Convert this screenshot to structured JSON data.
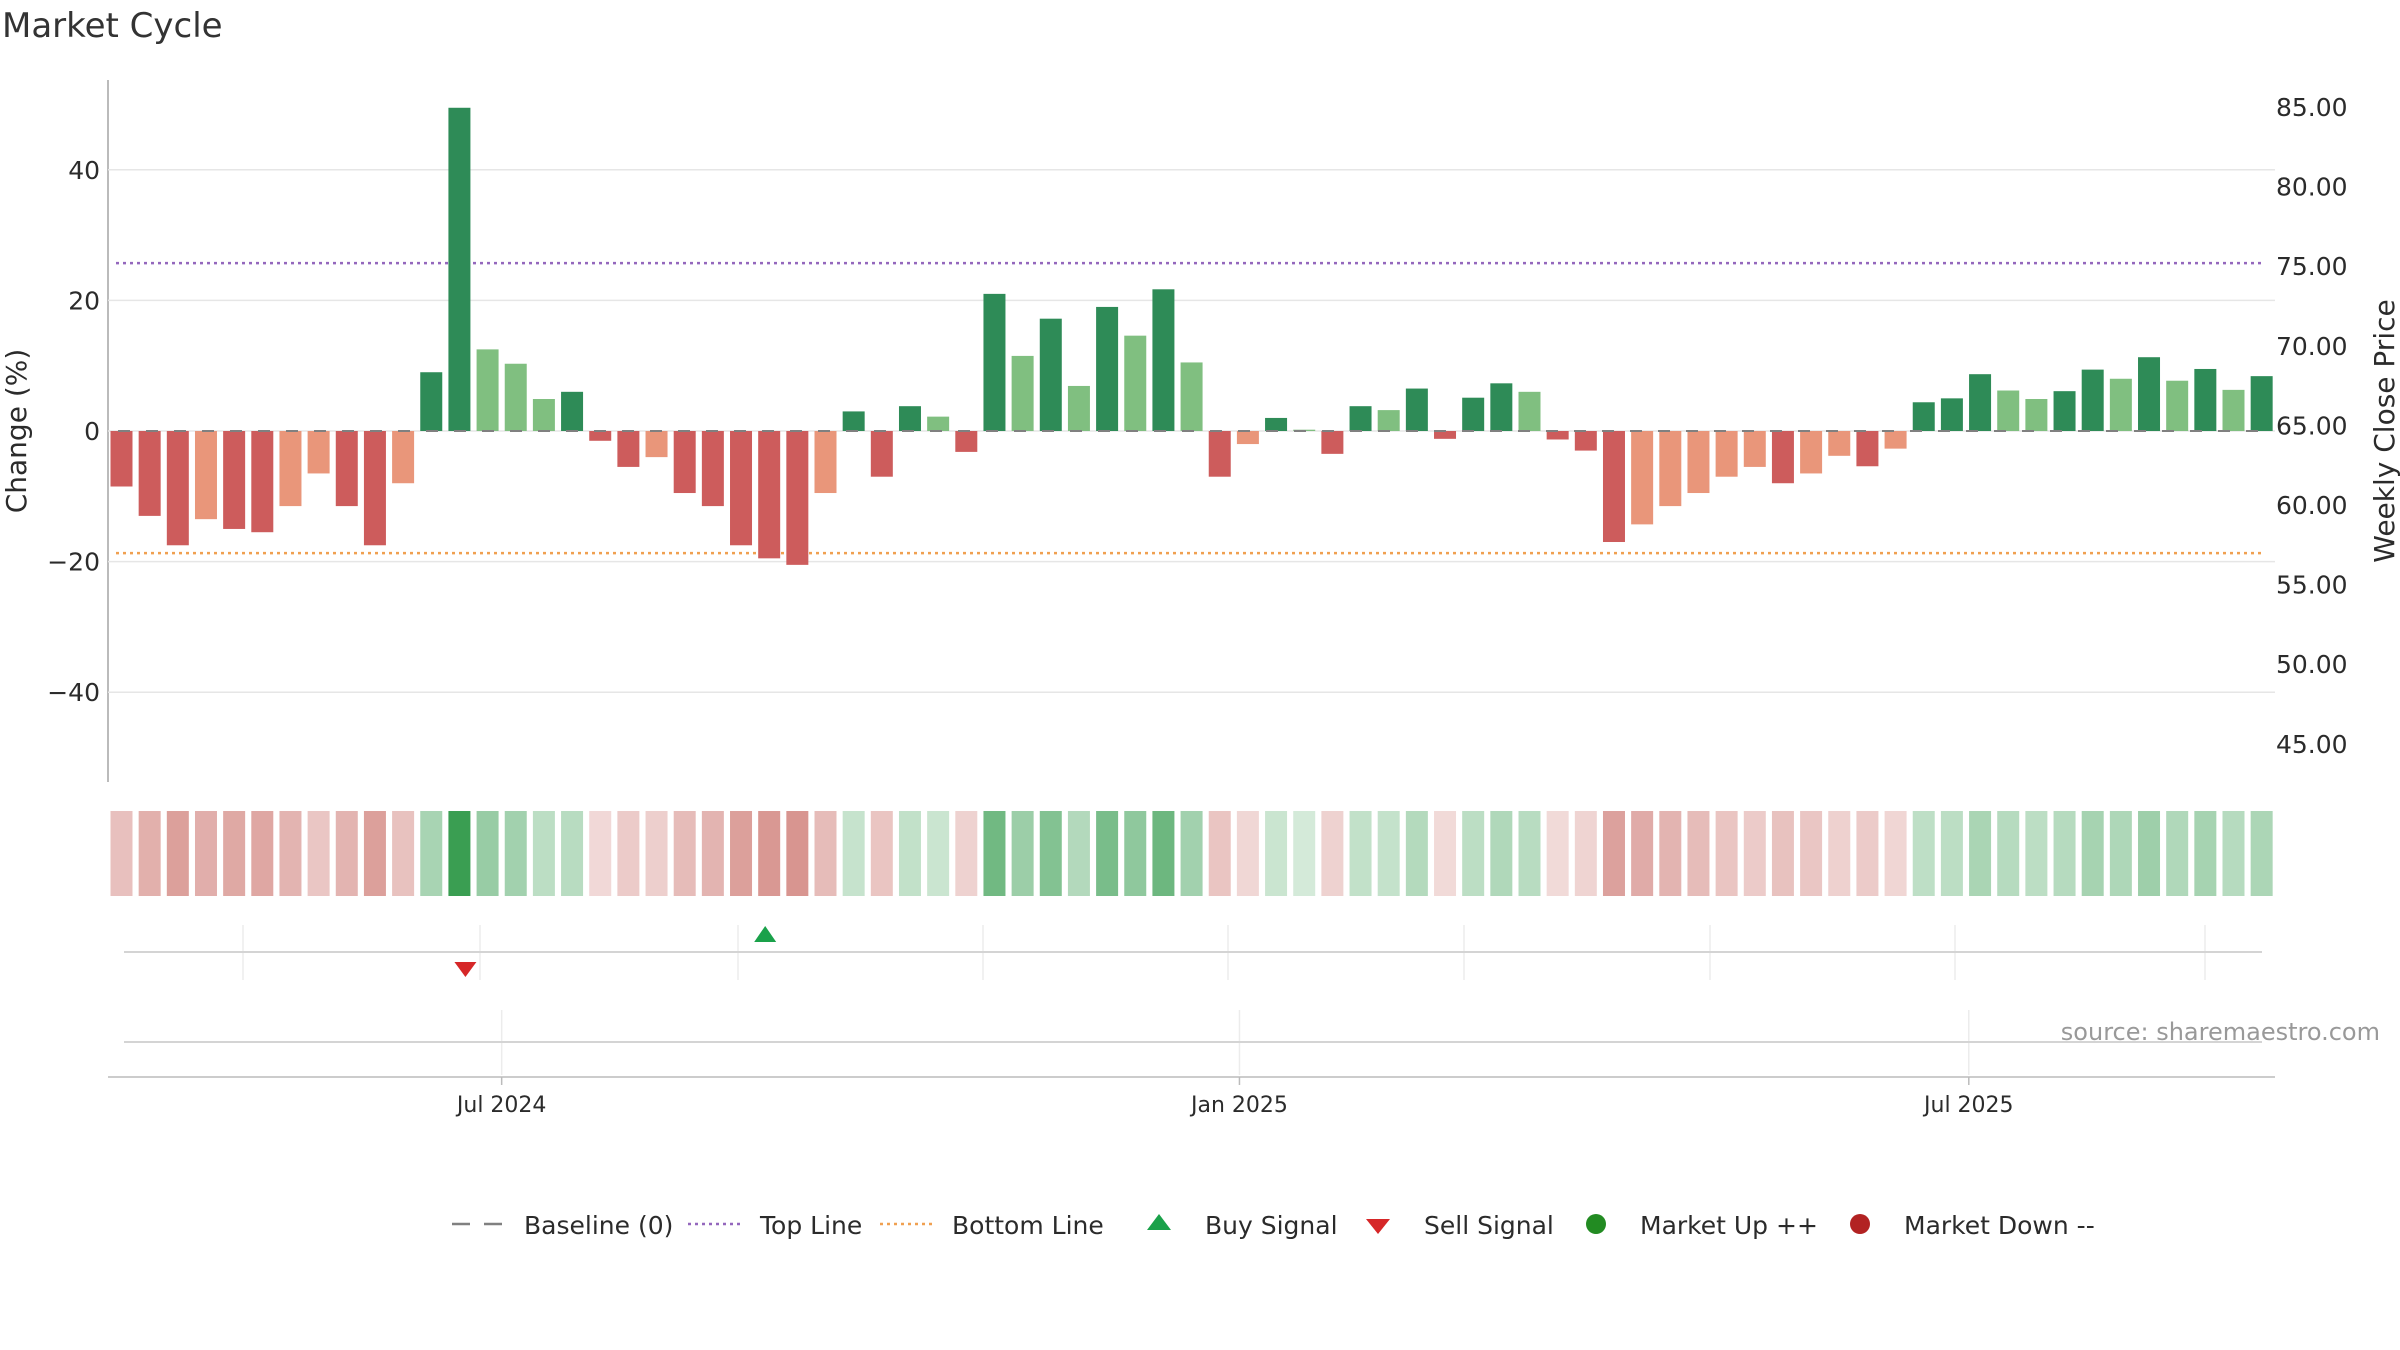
{
  "title": "Market Cycle",
  "source": "source: sharemaestro.com",
  "chart_data": {
    "type": "bar",
    "y_left": {
      "label": "Change (%)",
      "ticks": [
        40,
        20,
        0,
        -20,
        -40
      ],
      "tick_labels": [
        "40",
        "20",
        "0",
        "−20",
        "−40"
      ],
      "range": [
        -54,
        54
      ]
    },
    "y_right": {
      "label": "Weekly Close Price",
      "ticks": [
        85,
        80,
        75,
        70,
        65,
        60,
        55,
        50,
        45
      ],
      "tick_labels": [
        "85.00",
        "80.00",
        "75.00",
        "70.00",
        "65.00",
        "60.00",
        "55.00",
        "50.00",
        "45.00"
      ]
    },
    "x_ticks": [
      {
        "index": 13.5,
        "label": "Jul 2024"
      },
      {
        "index": 39.7,
        "label": "Jan 2025"
      },
      {
        "index": 65.6,
        "label": "Jul 2025"
      }
    ],
    "top_line": 25.7,
    "bottom_line": -18.7,
    "values": [
      -8.5,
      -13,
      -17.5,
      -13.5,
      -15,
      -15.5,
      -11.5,
      -6.5,
      -11.5,
      -17.5,
      -8,
      9,
      49.5,
      12.5,
      10.3,
      4.9,
      6,
      -1.5,
      -5.5,
      -4,
      -9.5,
      -11.5,
      -17.5,
      -19.5,
      -20.5,
      -9.5,
      3,
      -7,
      3.8,
      2.2,
      -3.2,
      21,
      11.5,
      17.2,
      6.9,
      19,
      14.6,
      21.7,
      10.5,
      -7,
      -2,
      2,
      0.2,
      -3.5,
      3.8,
      3.2,
      6.5,
      -1.2,
      5.1,
      7.3,
      6,
      -1.3,
      -3,
      -17,
      -14.3,
      -11.5,
      -9.5,
      -7,
      -5.5,
      -8,
      -6.5,
      -3.8,
      -5.4,
      -2.7,
      4.4,
      5,
      8.7,
      6.2,
      4.9,
      6.1,
      9.4,
      8,
      11.3,
      7.7,
      9.5,
      6.3,
      8.4
    ],
    "bar_colors": {
      "strong_up": "#2e8b57",
      "up": "#80bf80",
      "strong_down": "#cd5c5c",
      "down": "#e9967a"
    },
    "shade_colors": {
      "up": "#3a9e52",
      "down": "#c86a63"
    },
    "buy_signals": [
      23
    ],
    "sell_signals": [
      12
    ],
    "legend": [
      {
        "label": "Baseline (0)",
        "marker": "dash",
        "color": "#808080"
      },
      {
        "label": "Top Line",
        "marker": "dotted",
        "color": "#9467bd"
      },
      {
        "label": "Bottom Line",
        "marker": "dotted",
        "color": "#f0a050"
      },
      {
        "label": "Buy Signal",
        "marker": "triangle-up",
        "color": "#1aa14a"
      },
      {
        "label": "Sell Signal",
        "marker": "triangle-down",
        "color": "#d62728"
      },
      {
        "label": "Market Up ++",
        "marker": "circle",
        "color": "#228b22"
      },
      {
        "label": "Market Down --",
        "marker": "circle",
        "color": "#b22222"
      }
    ]
  }
}
